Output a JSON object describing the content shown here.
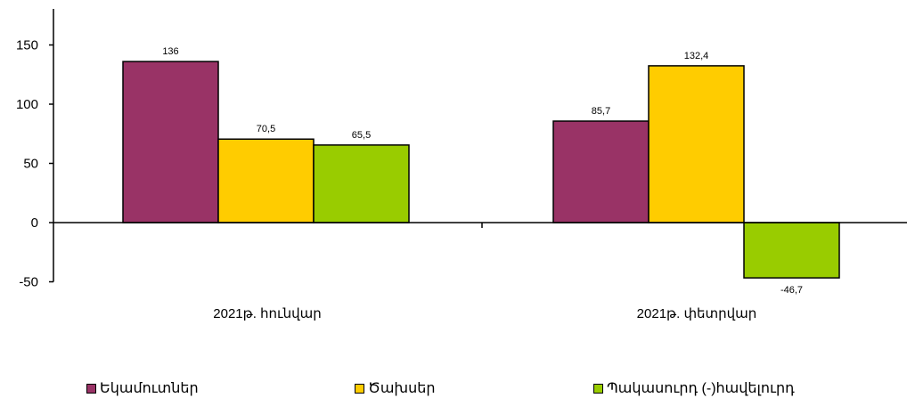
{
  "chart_data": {
    "type": "bar",
    "categories": [
      "2021թ. հունվար",
      "2021թ. փետրվար"
    ],
    "series": [
      {
        "name": "Եկամուտներ",
        "values": [
          136,
          85.7
        ],
        "labels": [
          "136",
          "85,7"
        ],
        "color": "#993366"
      },
      {
        "name": "Ծախսեր",
        "values": [
          70.5,
          132.4
        ],
        "labels": [
          "70,5",
          "132,4"
        ],
        "color": "#FFCC00"
      },
      {
        "name": "Պակասուրդ (-)հավելուրդ",
        "values": [
          65.5,
          -46.7
        ],
        "labels": [
          "65,5",
          "-46,7"
        ],
        "color": "#99CC00"
      }
    ],
    "yticks": [
      "150",
      "100",
      "50",
      "0",
      "-50"
    ],
    "ytick_values": [
      150,
      100,
      50,
      0,
      -50
    ],
    "ylim": [
      -50,
      160
    ],
    "title": "",
    "xlabel": "",
    "ylabel": "",
    "grid": false,
    "legend_position": "bottom"
  }
}
